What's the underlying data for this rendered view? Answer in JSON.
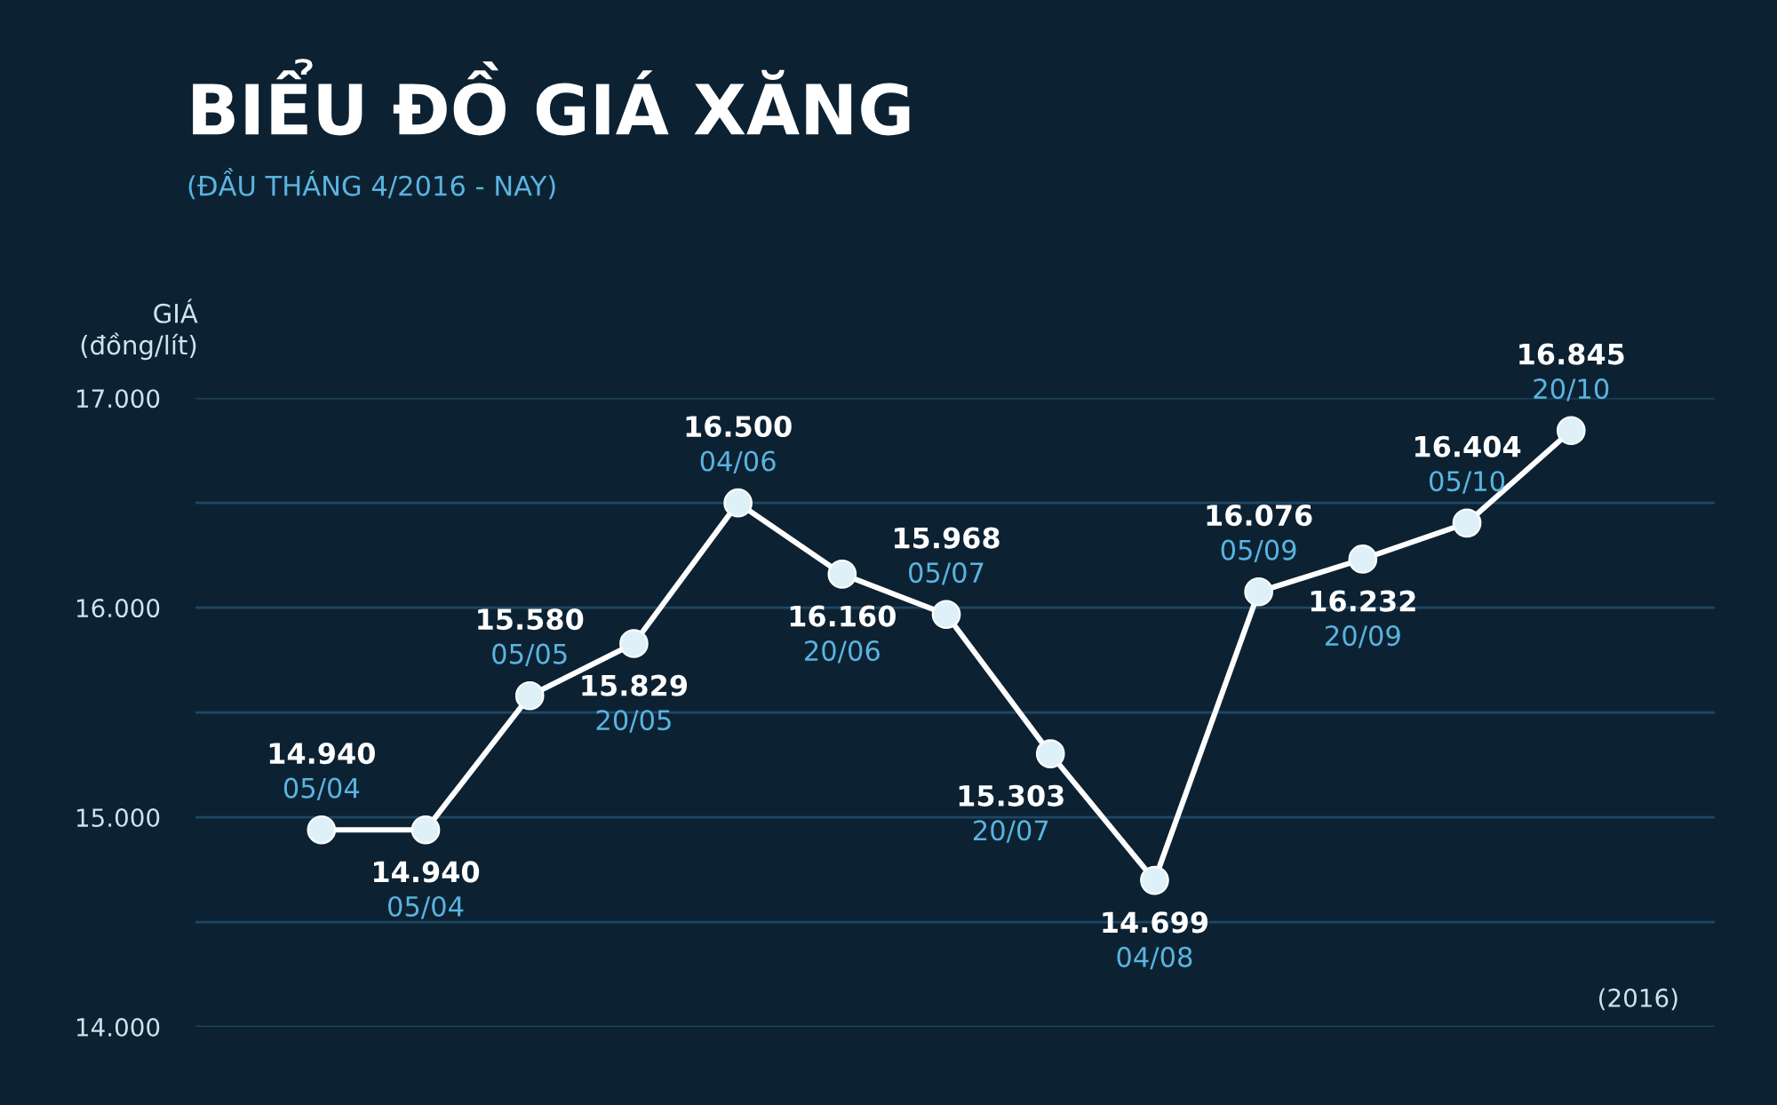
{
  "chart_data": {
    "type": "line",
    "title": "BIỂU ĐỒ GIÁ XĂNG",
    "subtitle": "(ĐẦU THÁNG 4/2016 - NAY)",
    "ylabel": "GIÁ\n(đồng/lít)",
    "categories": [
      "05/04",
      "05/04",
      "05/05",
      "20/05",
      "04/06",
      "20/06",
      "05/07",
      "20/07",
      "04/08",
      "05/09",
      "20/09",
      "05/10",
      "20/10"
    ],
    "series": [
      {
        "color": "#ffffff",
        "values": [
          14940,
          14940,
          15580,
          15829,
          16500,
          16160,
          15968,
          15303,
          14699,
          16076,
          16232,
          16404,
          16845
        ],
        "value_labels": [
          "14.940",
          "14.940",
          "15.580",
          "15.829",
          "16.500",
          "16.160",
          "15.968",
          "15.303",
          "14.699",
          "16.076",
          "16.232",
          "16.404",
          "16.845"
        ]
      }
    ],
    "ylim": [
      14000,
      17000
    ],
    "yticks": [
      {
        "value": 14000,
        "label": "14.000"
      },
      {
        "value": 14500,
        "label": null
      },
      {
        "value": 15000,
        "label": "15.000"
      },
      {
        "value": 15500,
        "label": null
      },
      {
        "value": 16000,
        "label": "16.000"
      },
      {
        "value": 16500,
        "label": null
      },
      {
        "value": 17000,
        "label": "17.000"
      }
    ],
    "grid": "y",
    "marker": "circle",
    "line_style": "solid",
    "legend": false,
    "annotations": [
      "(2016)"
    ]
  }
}
